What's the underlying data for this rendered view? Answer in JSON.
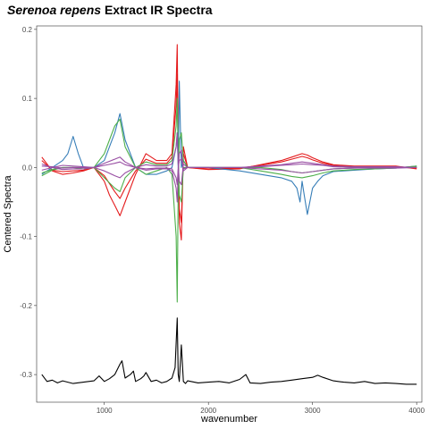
{
  "chart_data": {
    "type": "line",
    "title": {
      "italic": "Serenoa repens",
      "rest": " Extract IR Spectra"
    },
    "xlabel": "wavenumber",
    "ylabel": "Centered Spectra",
    "xlim": [
      350,
      4050
    ],
    "ylim": [
      -0.34,
      0.205
    ],
    "xticks": [
      1000,
      2000,
      3000,
      4000
    ],
    "yticks": [
      0.2,
      0.1,
      0.0,
      -0.1,
      -0.2,
      -0.3
    ],
    "ytick_labels": [
      "0.2",
      "0.1",
      "0.0",
      "-0.1",
      "-0.2",
      "-0.3"
    ],
    "grid": false,
    "legend": "none",
    "colors": {
      "red": "#e41a1c",
      "blue": "#377eb8",
      "green": "#4daf4a",
      "purple": "#984ea3",
      "black": "#000000"
    },
    "series": [
      {
        "color": "#e41a1c",
        "x": [
          400,
          500,
          600,
          700,
          800,
          900,
          1000,
          1050,
          1100,
          1150,
          1200,
          1300,
          1400,
          1500,
          1600,
          1650,
          1690,
          1700,
          1710,
          1720,
          1740,
          1760,
          1800,
          2000,
          2300,
          2500,
          2700,
          2800,
          2900,
          2950,
          3000,
          3100,
          3200,
          3400,
          3600,
          3800,
          4000
        ],
        "y": [
          0.015,
          -0.005,
          -0.01,
          -0.008,
          -0.005,
          0.0,
          -0.02,
          -0.04,
          -0.055,
          -0.07,
          -0.05,
          -0.01,
          0.02,
          0.01,
          0.01,
          0.02,
          0.12,
          0.178,
          0.03,
          -0.08,
          -0.105,
          0.03,
          0.0,
          -0.003,
          -0.002,
          0.004,
          0.01,
          0.015,
          0.02,
          0.018,
          0.014,
          0.008,
          0.004,
          0.002,
          0.002,
          0.002,
          -0.002
        ]
      },
      {
        "color": "#e41a1c",
        "x": [
          400,
          500,
          600,
          700,
          800,
          900,
          1000,
          1100,
          1150,
          1200,
          1300,
          1400,
          1500,
          1600,
          1650,
          1690,
          1700,
          1710,
          1720,
          1740,
          1760,
          1800,
          2000,
          2300,
          2500,
          2700,
          2800,
          2900,
          2950,
          3000,
          3100,
          3200,
          3400,
          3600,
          3800,
          4000
        ],
        "y": [
          0.01,
          -0.004,
          -0.006,
          -0.005,
          -0.004,
          0.0,
          -0.012,
          -0.035,
          -0.045,
          -0.03,
          -0.005,
          0.012,
          0.006,
          0.006,
          0.015,
          0.09,
          0.135,
          0.02,
          -0.06,
          -0.08,
          0.02,
          0.0,
          -0.002,
          -0.001,
          0.003,
          0.008,
          0.012,
          0.016,
          0.014,
          0.011,
          0.006,
          0.003,
          0.001,
          0.001,
          0.001,
          -0.001
        ]
      },
      {
        "color": "#377eb8",
        "x": [
          400,
          500,
          600,
          650,
          700,
          750,
          800,
          900,
          1000,
          1050,
          1100,
          1150,
          1200,
          1300,
          1400,
          1500,
          1600,
          1650,
          1690,
          1700,
          1710,
          1720,
          1740,
          1760,
          1800,
          2000,
          2300,
          2500,
          2700,
          2800,
          2850,
          2880,
          2900,
          2920,
          2950,
          3000,
          3050,
          3100,
          3200,
          3400,
          3600,
          3800,
          4000
        ],
        "y": [
          -0.01,
          0.0,
          0.01,
          0.02,
          0.045,
          0.02,
          0.0,
          0.0,
          0.01,
          0.03,
          0.05,
          0.078,
          0.04,
          0.0,
          -0.01,
          -0.01,
          -0.005,
          0.0,
          0.03,
          0.05,
          0.0,
          0.125,
          0.0,
          0.01,
          0.0,
          0.0,
          -0.005,
          -0.01,
          -0.015,
          -0.02,
          -0.03,
          -0.05,
          -0.02,
          -0.04,
          -0.068,
          -0.03,
          -0.02,
          -0.012,
          -0.006,
          -0.004,
          -0.002,
          -0.001,
          0.002
        ]
      },
      {
        "color": "#4daf4a",
        "x": [
          400,
          500,
          600,
          700,
          800,
          900,
          1000,
          1050,
          1100,
          1150,
          1200,
          1300,
          1400,
          1500,
          1600,
          1650,
          1690,
          1700,
          1710,
          1720,
          1740,
          1760,
          1800,
          2000,
          2300,
          2500,
          2700,
          2800,
          2900,
          3000,
          3100,
          3200,
          3400,
          3600,
          3800,
          4000
        ],
        "y": [
          -0.012,
          -0.004,
          0.0,
          0.0,
          0.0,
          0.0,
          0.02,
          0.04,
          0.06,
          0.07,
          0.03,
          0.0,
          -0.01,
          -0.005,
          0.0,
          -0.01,
          -0.1,
          -0.195,
          -0.03,
          0.04,
          0.05,
          0.01,
          0.0,
          0.0,
          0.0,
          -0.005,
          -0.01,
          -0.013,
          -0.015,
          -0.012,
          -0.008,
          -0.005,
          -0.003,
          -0.002,
          -0.001,
          0.002
        ]
      },
      {
        "color": "#4daf4a",
        "x": [
          400,
          500,
          600,
          700,
          800,
          900,
          1000,
          1100,
          1150,
          1200,
          1300,
          1400,
          1500,
          1600,
          1650,
          1690,
          1700,
          1710,
          1720,
          1740,
          1760,
          1800,
          2000,
          2300,
          2500,
          2700,
          2800,
          2900,
          3000,
          3100,
          3200,
          3400,
          3600,
          3800,
          4000
        ],
        "y": [
          -0.008,
          -0.003,
          0.0,
          0.0,
          -0.002,
          0.0,
          -0.015,
          -0.03,
          -0.035,
          -0.015,
          0.0,
          0.008,
          0.004,
          0.004,
          0.01,
          0.06,
          0.1,
          0.01,
          -0.04,
          -0.05,
          0.0,
          0.0,
          0.0,
          0.0,
          0.0,
          -0.003,
          -0.006,
          -0.008,
          -0.006,
          -0.004,
          -0.002,
          -0.001,
          0.0,
          0.0,
          0.001
        ]
      },
      {
        "color": "#984ea3",
        "x": [
          400,
          500,
          600,
          700,
          800,
          900,
          1000,
          1100,
          1150,
          1200,
          1300,
          1400,
          1500,
          1600,
          1650,
          1690,
          1700,
          1710,
          1720,
          1740,
          1760,
          1800,
          2000,
          2300,
          2500,
          2700,
          2800,
          2900,
          3000,
          3100,
          3200,
          3400,
          3600,
          3800,
          4000
        ],
        "y": [
          0.005,
          0.0,
          -0.003,
          -0.002,
          -0.002,
          0.0,
          -0.005,
          -0.012,
          -0.015,
          -0.008,
          0.0,
          0.004,
          0.002,
          0.002,
          0.005,
          0.03,
          0.05,
          0.005,
          -0.02,
          -0.025,
          0.005,
          0.0,
          0.0,
          0.0,
          0.002,
          0.004,
          0.006,
          0.008,
          0.006,
          0.004,
          0.002,
          0.001,
          0.001,
          0.001,
          0.0
        ]
      },
      {
        "color": "#984ea3",
        "x": [
          400,
          500,
          600,
          700,
          800,
          900,
          1000,
          1100,
          1150,
          1200,
          1300,
          1400,
          1500,
          1600,
          1650,
          1690,
          1700,
          1710,
          1720,
          1740,
          1760,
          1800,
          2000,
          2300,
          2500,
          2700,
          2800,
          2900,
          3000,
          3100,
          3200,
          3400,
          3600,
          3800,
          4000
        ],
        "y": [
          -0.004,
          0.0,
          0.003,
          0.002,
          0.001,
          0.0,
          0.006,
          0.012,
          0.015,
          0.008,
          0.0,
          -0.004,
          -0.002,
          -0.002,
          -0.005,
          -0.03,
          -0.05,
          -0.005,
          0.02,
          0.025,
          -0.005,
          0.0,
          0.0,
          0.0,
          -0.002,
          -0.004,
          -0.006,
          -0.008,
          -0.006,
          -0.004,
          -0.002,
          -0.001,
          -0.001,
          -0.001,
          0.0
        ]
      },
      {
        "color": "#984ea3",
        "x": [
          400,
          500,
          600,
          700,
          800,
          900,
          1000,
          1100,
          1150,
          1200,
          1300,
          1400,
          1500,
          1600,
          1650,
          1690,
          1700,
          1710,
          1720,
          1740,
          1760,
          1800,
          2000,
          2300,
          2500,
          2700,
          2800,
          2900,
          3000,
          3100,
          3200,
          3400,
          3600,
          3800,
          4000
        ],
        "y": [
          0.002,
          0.001,
          -0.001,
          0.0,
          0.0,
          0.0,
          0.003,
          0.006,
          0.008,
          0.004,
          0.0,
          -0.002,
          -0.001,
          -0.001,
          -0.002,
          -0.015,
          -0.025,
          0.0,
          0.01,
          0.012,
          -0.002,
          0.0,
          0.0,
          0.0,
          0.001,
          0.003,
          0.004,
          0.005,
          0.004,
          0.003,
          0.001,
          0.0,
          0.0,
          0.0,
          0.0
        ]
      },
      {
        "color": "#000000",
        "x": [
          400,
          450,
          500,
          550,
          600,
          650,
          700,
          800,
          900,
          950,
          1000,
          1050,
          1100,
          1150,
          1170,
          1200,
          1250,
          1280,
          1300,
          1350,
          1380,
          1400,
          1450,
          1500,
          1550,
          1600,
          1650,
          1680,
          1700,
          1710,
          1720,
          1740,
          1760,
          1780,
          1800,
          1900,
          2000,
          2100,
          2200,
          2300,
          2360,
          2400,
          2500,
          2600,
          2700,
          2800,
          2900,
          3000,
          3050,
          3100,
          3200,
          3300,
          3400,
          3500,
          3600,
          3700,
          3800,
          3900,
          4000
        ],
        "y": [
          -0.3,
          -0.31,
          -0.308,
          -0.312,
          -0.309,
          -0.311,
          -0.313,
          -0.311,
          -0.309,
          -0.302,
          -0.31,
          -0.306,
          -0.3,
          -0.285,
          -0.28,
          -0.305,
          -0.3,
          -0.295,
          -0.31,
          -0.306,
          -0.302,
          -0.297,
          -0.31,
          -0.308,
          -0.312,
          -0.31,
          -0.305,
          -0.29,
          -0.218,
          -0.3,
          -0.31,
          -0.257,
          -0.31,
          -0.313,
          -0.309,
          -0.312,
          -0.311,
          -0.31,
          -0.312,
          -0.307,
          -0.3,
          -0.312,
          -0.313,
          -0.311,
          -0.31,
          -0.308,
          -0.306,
          -0.304,
          -0.301,
          -0.304,
          -0.309,
          -0.311,
          -0.312,
          -0.31,
          -0.313,
          -0.312,
          -0.313,
          -0.314,
          -0.314
        ]
      }
    ]
  }
}
